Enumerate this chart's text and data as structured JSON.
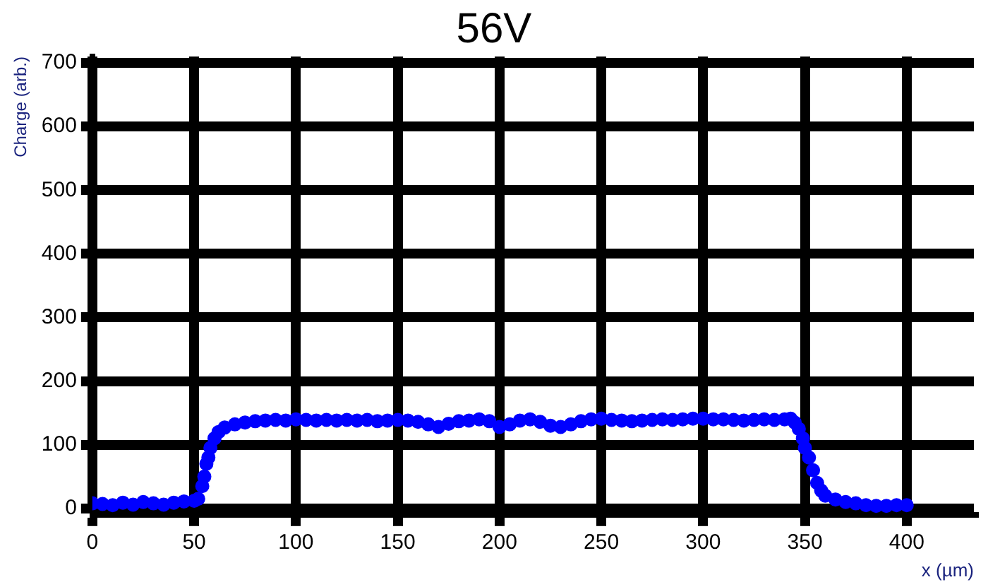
{
  "chart_data": {
    "type": "scatter",
    "title": "56V",
    "xlabel": "x (µm)",
    "ylabel": "Charge (arb.)",
    "x": [
      0,
      5,
      10,
      15,
      20,
      25,
      30,
      35,
      40,
      45,
      50,
      52,
      54,
      55,
      56,
      57,
      58,
      60,
      62,
      65,
      70,
      75,
      80,
      85,
      90,
      95,
      100,
      105,
      110,
      115,
      120,
      125,
      130,
      135,
      140,
      145,
      150,
      155,
      160,
      165,
      170,
      175,
      180,
      185,
      190,
      195,
      200,
      205,
      210,
      215,
      220,
      225,
      230,
      235,
      240,
      245,
      250,
      255,
      260,
      265,
      270,
      275,
      280,
      285,
      290,
      295,
      300,
      305,
      310,
      315,
      320,
      325,
      330,
      335,
      340,
      343,
      345,
      347,
      349,
      350,
      352,
      354,
      356,
      358,
      360,
      365,
      370,
      375,
      380,
      385,
      390,
      395,
      400
    ],
    "series": [
      {
        "color": "#0000ff",
        "values": [
          8,
          7,
          5,
          9,
          6,
          10,
          8,
          6,
          9,
          11,
          12,
          15,
          35,
          50,
          70,
          80,
          95,
          110,
          120,
          127,
          132,
          135,
          137,
          138,
          139,
          138,
          140,
          139,
          138,
          139,
          138,
          139,
          138,
          139,
          137,
          138,
          139,
          138,
          136,
          132,
          128,
          133,
          137,
          138,
          140,
          137,
          128,
          132,
          138,
          140,
          136,
          130,
          128,
          132,
          137,
          140,
          141,
          139,
          138,
          137,
          138,
          139,
          140,
          139,
          140,
          141,
          141,
          140,
          140,
          139,
          138,
          139,
          140,
          139,
          140,
          141,
          135,
          125,
          110,
          95,
          80,
          60,
          40,
          28,
          20,
          14,
          10,
          8,
          5,
          4,
          4,
          5,
          5
        ]
      }
    ],
    "xlim": [
      0,
      433
    ],
    "ylim": [
      -10,
      710
    ],
    "xticks": [
      0,
      50,
      100,
      150,
      200,
      250,
      300,
      350,
      400
    ],
    "yticks": [
      0,
      100,
      200,
      300,
      400,
      500,
      600,
      700
    ],
    "grid": true,
    "marker": "circle",
    "legend": false
  }
}
